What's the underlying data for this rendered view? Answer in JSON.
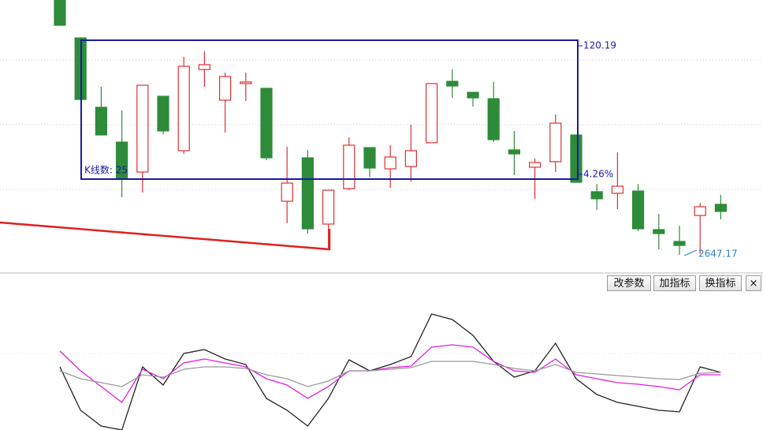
{
  "chart_data": {
    "type": "candlestick",
    "ylim": [
      2632,
      2869
    ],
    "up_color": "#e03030",
    "down_color": "#2e8b3a",
    "open": [
      2869.0,
      2836.0,
      2775.6,
      2745.3,
      2719.2,
      2785.2,
      2737.8,
      2808.5,
      2781.8,
      2796.2,
      2792.1,
      2693.8,
      2731.6,
      2673.9,
      2704.8,
      2740.5,
      2722.0,
      2724.0,
      2744.7,
      2798.2,
      2788.6,
      2783.1,
      2738.5,
      2723.4,
      2728.2,
      2751.5,
      2702.1,
      2700.7,
      2702.7,
      2669.1,
      2658.8,
      2681.4,
      2691.1
    ],
    "high": [
      2869.0,
      2836.0,
      2793.4,
      2772.8,
      2794.8,
      2785.2,
      2819.5,
      2824.3,
      2805.8,
      2805.8,
      2792.1,
      2741.2,
      2738.5,
      2703.4,
      2749.5,
      2740.5,
      2742.6,
      2760.5,
      2796.2,
      2808.5,
      2788.6,
      2797.6,
      2755.0,
      2730.9,
      2769.4,
      2751.5,
      2708.9,
      2736.4,
      2708.9,
      2682.8,
      2672.5,
      2692.4,
      2699.3
    ],
    "low": [
      2847.0,
      2782.4,
      2751.5,
      2697.3,
      2701.4,
      2752.2,
      2735.0,
      2793.4,
      2753.6,
      2781.1,
      2729.5,
      2674.6,
      2665.6,
      2651.9,
      2703.4,
      2715.1,
      2705.5,
      2711.0,
      2744.7,
      2783.8,
      2776.3,
      2745.3,
      2716.5,
      2695.9,
      2719.2,
      2710.3,
      2686.3,
      2687.0,
      2667.7,
      2651.9,
      2647.17,
      2648.0,
      2678.0
    ],
    "close": [
      2847.0,
      2782.4,
      2751.5,
      2713.7,
      2794.8,
      2755.0,
      2811.3,
      2812.7,
      2802.4,
      2797.6,
      2731.6,
      2709.6,
      2669.8,
      2703.4,
      2742.6,
      2722.7,
      2732.3,
      2737.8,
      2796.2,
      2794.1,
      2783.8,
      2747.4,
      2735.0,
      2727.5,
      2761.8,
      2710.3,
      2695.9,
      2706.9,
      2669.8,
      2665.6,
      2655.3,
      2689.0,
      2684.9
    ],
    "annotations": {
      "range": "120.19",
      "percent": "4.26%",
      "count": "K线数: 25",
      "low": "2647.17"
    },
    "indicator": {
      "ylim": [
        0,
        175
      ],
      "series": [
        {
          "color": "#222222",
          "values": [
            80,
            25,
            5,
            0,
            80,
            57,
            97,
            102,
            90,
            83,
            40,
            25,
            5,
            40,
            89,
            75,
            83,
            93,
            147,
            140,
            120,
            87,
            67,
            75,
            110,
            65,
            45,
            35,
            30,
            25,
            23,
            80,
            73
          ]
        },
        {
          "color": "#e020e0",
          "values": [
            100,
            75,
            55,
            35,
            77,
            65,
            85,
            90,
            85,
            80,
            65,
            57,
            40,
            55,
            75,
            75,
            79,
            81,
            105,
            108,
            105,
            87,
            75,
            73,
            90,
            70,
            65,
            60,
            58,
            55,
            51,
            70,
            70
          ]
        },
        {
          "color": "#999999",
          "values": [
            75,
            65,
            60,
            55,
            70,
            67,
            77,
            80,
            80,
            78,
            70,
            65,
            55,
            62,
            75,
            75,
            77,
            79,
            87,
            87,
            87,
            83,
            78,
            75,
            83,
            73,
            71,
            69,
            67,
            65,
            64,
            72,
            73
          ]
        }
      ]
    },
    "buttons": [
      "改参数",
      "加指标",
      "换指标",
      "×"
    ]
  }
}
